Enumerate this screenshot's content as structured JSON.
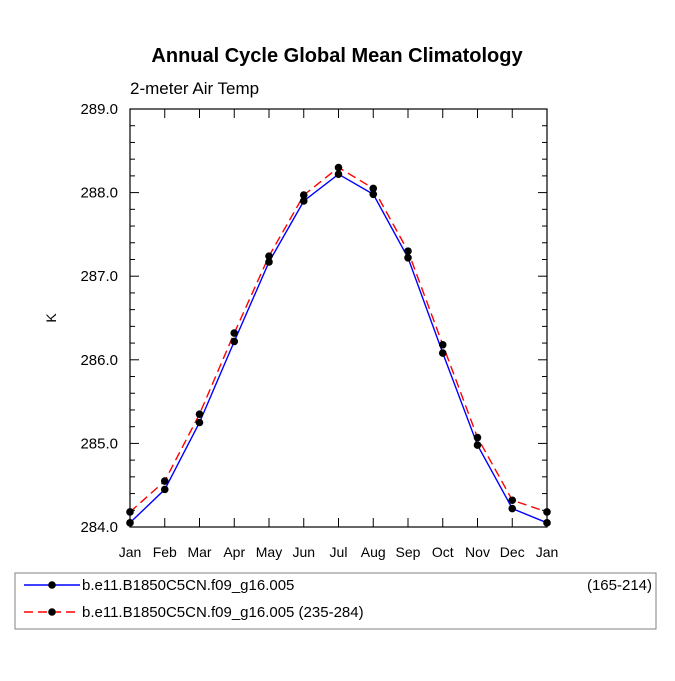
{
  "chart_data": {
    "type": "line",
    "title": "Annual Cycle Global Mean Climatology",
    "subtitle": "2-meter Air Temp",
    "xlabel": "",
    "ylabel": "K",
    "ylim": [
      284.0,
      289.0
    ],
    "yticks": [
      "284.0",
      "285.0",
      "286.0",
      "287.0",
      "288.0",
      "289.0"
    ],
    "categories": [
      "Jan",
      "Feb",
      "Mar",
      "Apr",
      "May",
      "Jun",
      "Jul",
      "Aug",
      "Sep",
      "Oct",
      "Nov",
      "Dec",
      "Jan"
    ],
    "series": [
      {
        "name": "b.e11.B1850C5CN.f09_g16.005",
        "name_suffix": "(165-214)",
        "color": "#0000ff",
        "dash": "solid",
        "marker": "circle",
        "values": [
          284.05,
          284.45,
          285.25,
          286.22,
          287.17,
          287.9,
          288.22,
          287.98,
          287.22,
          286.08,
          284.98,
          284.22,
          284.05
        ]
      },
      {
        "name": "b.e11.B1850C5CN.f09_g16.005 (235-284)",
        "name_suffix": "",
        "color": "#ff0000",
        "dash": "dashed",
        "marker": "circle",
        "values": [
          284.18,
          284.55,
          285.35,
          286.32,
          287.24,
          287.97,
          288.3,
          288.05,
          287.3,
          286.18,
          285.07,
          284.32,
          284.18
        ]
      }
    ],
    "legend_position": "bottom"
  }
}
